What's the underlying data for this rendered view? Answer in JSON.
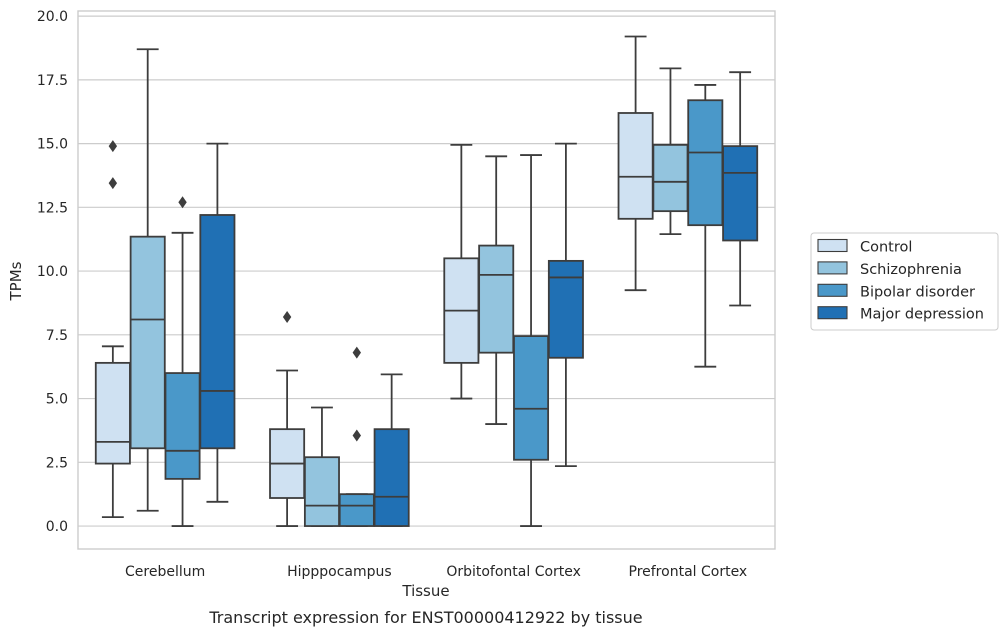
{
  "chart_data": {
    "type": "box",
    "title": "",
    "caption": "Transcript expression for ENST00000412922 by tissue",
    "xlabel": "Tissue",
    "ylabel": "TPMs",
    "ylim": [
      -0.9,
      20.2
    ],
    "yticks": [
      "0.0",
      "2.5",
      "5.0",
      "7.5",
      "10.0",
      "12.5",
      "15.0",
      "17.5",
      "20.0"
    ],
    "grid": true,
    "legend_position": "right",
    "categories": [
      "Cerebellum",
      "Hipppocampus",
      "Orbitofontal Cortex",
      "Prefrontal Cortex"
    ],
    "series": [
      {
        "name": "Control",
        "color": "#cfe1f2",
        "boxes": [
          {
            "whisker_low": 0.35,
            "q1": 2.45,
            "median": 3.3,
            "q3": 6.4,
            "whisker_high": 7.05,
            "outliers": [
              14.9,
              13.45
            ]
          },
          {
            "whisker_low": 0.0,
            "q1": 1.1,
            "median": 2.45,
            "q3": 3.8,
            "whisker_high": 6.1,
            "outliers": [
              8.2
            ]
          },
          {
            "whisker_low": 5.0,
            "q1": 6.4,
            "median": 8.45,
            "q3": 10.5,
            "whisker_high": 14.95,
            "outliers": []
          },
          {
            "whisker_low": 9.25,
            "q1": 12.05,
            "median": 13.7,
            "q3": 16.2,
            "whisker_high": 19.2,
            "outliers": []
          }
        ]
      },
      {
        "name": "Schizophrenia",
        "color": "#93c4de",
        "boxes": [
          {
            "whisker_low": 0.6,
            "q1": 3.05,
            "median": 8.1,
            "q3": 11.35,
            "whisker_high": 18.7,
            "outliers": []
          },
          {
            "whisker_low": 0.0,
            "q1": 0.0,
            "median": 0.8,
            "q3": 2.7,
            "whisker_high": 4.65,
            "outliers": []
          },
          {
            "whisker_low": 4.0,
            "q1": 6.8,
            "median": 9.85,
            "q3": 11.0,
            "whisker_high": 14.5,
            "outliers": []
          },
          {
            "whisker_low": 11.45,
            "q1": 12.35,
            "median": 13.5,
            "q3": 14.95,
            "whisker_high": 17.95,
            "outliers": []
          }
        ]
      },
      {
        "name": "Bipolar disorder",
        "color": "#4a98c9",
        "boxes": [
          {
            "whisker_low": 0.0,
            "q1": 1.85,
            "median": 2.95,
            "q3": 6.0,
            "whisker_high": 11.5,
            "outliers": [
              12.7
            ]
          },
          {
            "whisker_low": 0.0,
            "q1": 0.0,
            "median": 0.8,
            "q3": 1.25,
            "whisker_high": 1.25,
            "outliers": [
              6.8,
              3.55
            ]
          },
          {
            "whisker_low": 0.0,
            "q1": 2.6,
            "median": 4.6,
            "q3": 7.45,
            "whisker_high": 14.55,
            "outliers": []
          },
          {
            "whisker_low": 6.25,
            "q1": 11.8,
            "median": 14.65,
            "q3": 16.7,
            "whisker_high": 17.3,
            "outliers": []
          }
        ]
      },
      {
        "name": "Major depression",
        "color": "#2070b4",
        "boxes": [
          {
            "whisker_low": 0.95,
            "q1": 3.05,
            "median": 5.3,
            "q3": 12.2,
            "whisker_high": 15.0,
            "outliers": []
          },
          {
            "whisker_low": 0.0,
            "q1": 0.0,
            "median": 1.15,
            "q3": 3.8,
            "whisker_high": 5.95,
            "outliers": []
          },
          {
            "whisker_low": 2.35,
            "q1": 6.6,
            "median": 9.75,
            "q3": 10.4,
            "whisker_high": 15.0,
            "outliers": []
          },
          {
            "whisker_low": 8.65,
            "q1": 11.2,
            "median": 13.85,
            "q3": 14.9,
            "whisker_high": 17.8,
            "outliers": []
          }
        ]
      }
    ]
  }
}
